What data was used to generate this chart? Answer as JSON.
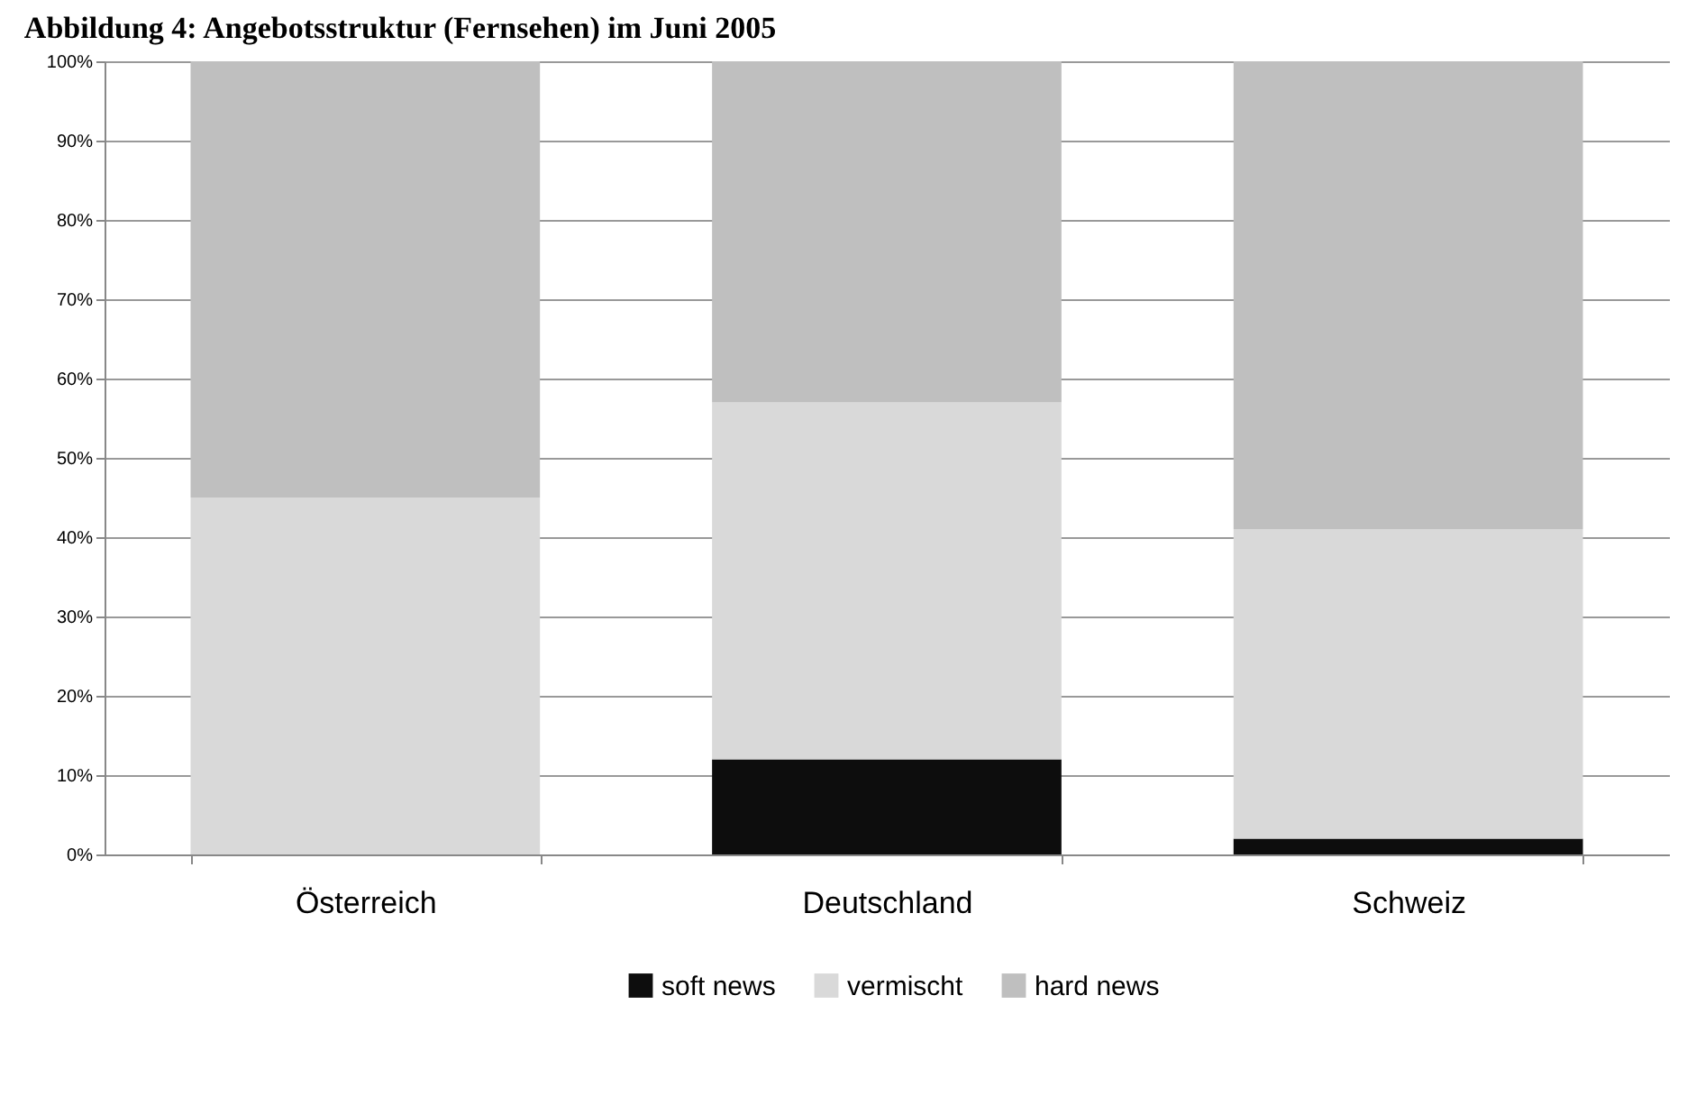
{
  "chart_data": {
    "type": "bar",
    "title": "Abbildung 4: Angebotsstruktur (Fernsehen) im Juni 2005",
    "categories": [
      "Österreich",
      "Deutschland",
      "Schweiz"
    ],
    "stacked": true,
    "series": [
      {
        "name": "soft news",
        "color": "#0d0d0d",
        "values": [
          0,
          12,
          2
        ]
      },
      {
        "name": "vermischt",
        "color": "#d9d9d9",
        "values": [
          45,
          45,
          39
        ]
      },
      {
        "name": "hard news",
        "color": "#bfbfbf",
        "values": [
          55,
          43,
          59
        ]
      }
    ],
    "ylim": [
      0,
      100
    ],
    "yticks": [
      {
        "value": 0,
        "label": "0%"
      },
      {
        "value": 10,
        "label": "10%"
      },
      {
        "value": 20,
        "label": "20%"
      },
      {
        "value": 30,
        "label": "30%"
      },
      {
        "value": 40,
        "label": "40%"
      },
      {
        "value": 50,
        "label": "50%"
      },
      {
        "value": 60,
        "label": "60%"
      },
      {
        "value": 70,
        "label": "70%"
      },
      {
        "value": 80,
        "label": "80%"
      },
      {
        "value": 90,
        "label": "90%"
      },
      {
        "value": 100,
        "label": "100%"
      }
    ],
    "grid": "y",
    "legend": "bottom"
  }
}
